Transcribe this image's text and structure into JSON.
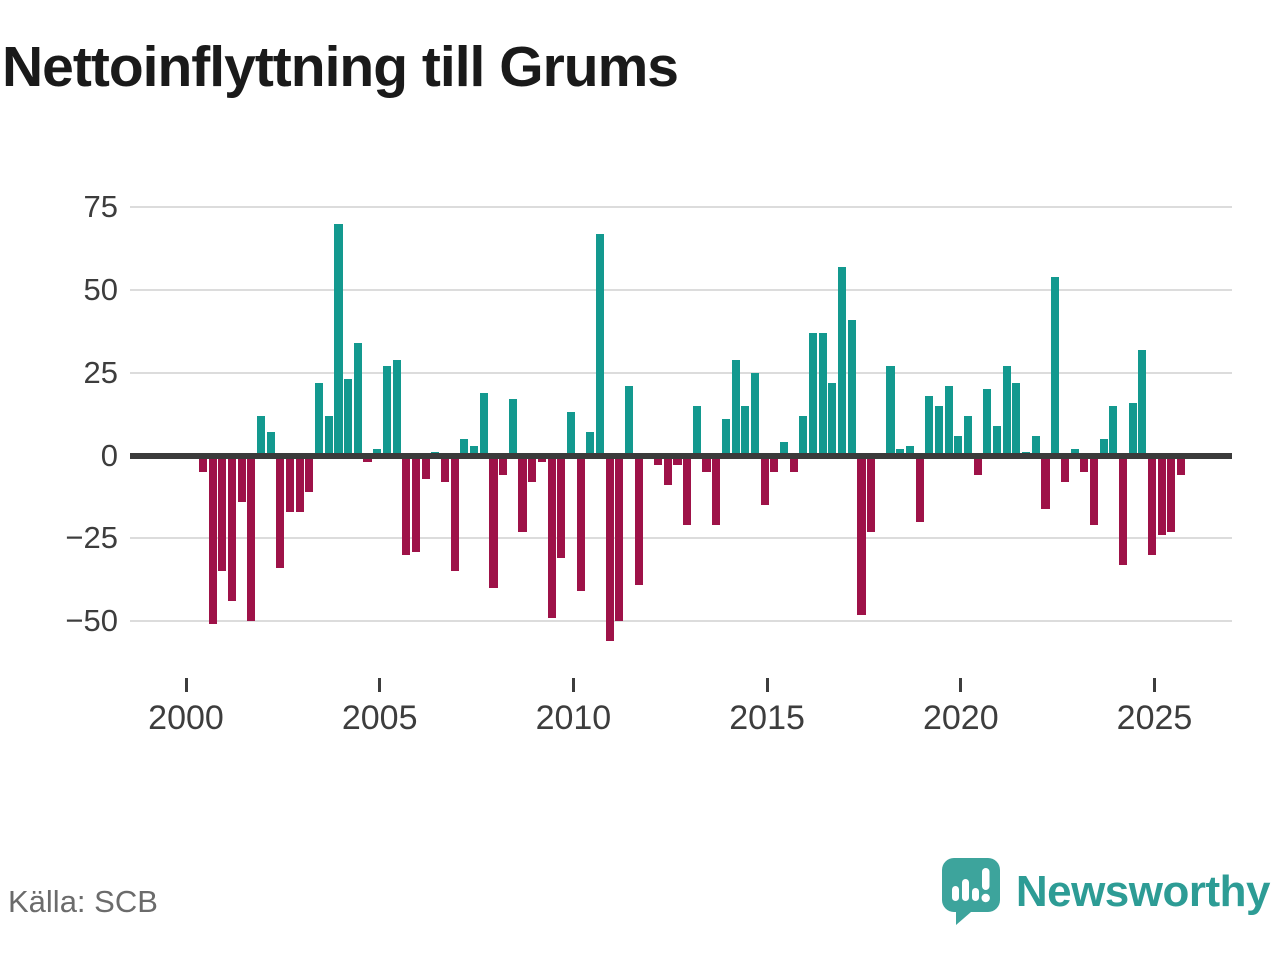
{
  "title": "Nettoinflyttning till Grums",
  "source": "Källa: SCB",
  "logo": {
    "text": "Newsworthy",
    "icon": "newsworthy-bar-chart-bubble"
  },
  "colors": {
    "positive": "#13998F",
    "negative": "#9E1248",
    "axis": "#3B3B3B",
    "grid": "#DCDCDC",
    "title": "#1A1A1A",
    "tick": "#3D3D3D",
    "source": "#6B6B6B",
    "brand": "#2D9C95"
  },
  "chart_data": {
    "type": "bar",
    "title": "Nettoinflyttning till Grums",
    "xlabel": "",
    "ylabel": "",
    "x_unit": "quarter",
    "start": "2000 Q2",
    "end": "2025 Q3",
    "grid": true,
    "ylim": [
      -62,
      80
    ],
    "y_ticks": [
      75,
      50,
      25,
      0,
      -25,
      -50
    ],
    "y_tick_labels": [
      "75",
      "50",
      "25",
      "0",
      "−25",
      "−50"
    ],
    "x_ticks": [
      2000,
      2005,
      2010,
      2015,
      2020,
      2025
    ],
    "x_tick_labels": [
      "2000",
      "2005",
      "2010",
      "2015",
      "2020",
      "2025"
    ],
    "quarters": [
      "2000 Q2",
      "2000 Q3",
      "2000 Q4",
      "2001 Q1",
      "2001 Q2",
      "2001 Q3",
      "2001 Q4",
      "2002 Q1",
      "2002 Q2",
      "2002 Q3",
      "2002 Q4",
      "2003 Q1",
      "2003 Q2",
      "2003 Q3",
      "2003 Q4",
      "2004 Q1",
      "2004 Q2",
      "2004 Q3",
      "2004 Q4",
      "2005 Q1",
      "2005 Q2",
      "2005 Q3",
      "2005 Q4",
      "2006 Q1",
      "2006 Q2",
      "2006 Q3",
      "2006 Q4",
      "2007 Q1",
      "2007 Q2",
      "2007 Q3",
      "2007 Q4",
      "2008 Q1",
      "2008 Q2",
      "2008 Q3",
      "2008 Q4",
      "2009 Q1",
      "2009 Q2",
      "2009 Q3",
      "2009 Q4",
      "2010 Q1",
      "2010 Q2",
      "2010 Q3",
      "2010 Q4",
      "2011 Q1",
      "2011 Q2",
      "2011 Q3",
      "2011 Q4",
      "2012 Q1",
      "2012 Q2",
      "2012 Q3",
      "2012 Q4",
      "2013 Q1",
      "2013 Q2",
      "2013 Q3",
      "2013 Q4",
      "2014 Q1",
      "2014 Q2",
      "2014 Q3",
      "2014 Q4",
      "2015 Q1",
      "2015 Q2",
      "2015 Q3",
      "2015 Q4",
      "2016 Q1",
      "2016 Q2",
      "2016 Q3",
      "2016 Q4",
      "2017 Q1",
      "2017 Q2",
      "2017 Q3",
      "2017 Q4",
      "2018 Q1",
      "2018 Q2",
      "2018 Q3",
      "2018 Q4",
      "2019 Q1",
      "2019 Q2",
      "2019 Q3",
      "2019 Q4",
      "2020 Q1",
      "2020 Q2",
      "2020 Q3",
      "2020 Q4",
      "2021 Q1",
      "2021 Q2",
      "2021 Q3",
      "2021 Q4",
      "2022 Q1",
      "2022 Q2",
      "2022 Q3",
      "2022 Q4",
      "2023 Q1",
      "2023 Q2",
      "2023 Q3",
      "2023 Q4",
      "2024 Q1",
      "2024 Q2",
      "2024 Q3",
      "2024 Q4",
      "2025 Q1",
      "2025 Q2",
      "2025 Q3"
    ],
    "values": [
      -5,
      -51,
      -35,
      -44,
      -14,
      -50,
      12,
      7,
      -34,
      -17,
      -17,
      -11,
      22,
      12,
      70,
      23,
      34,
      -2,
      2,
      27,
      29,
      -30,
      -29,
      -7,
      1,
      -8,
      -35,
      5,
      3,
      19,
      -40,
      -6,
      17,
      -23,
      -8,
      -2,
      -49,
      -31,
      13,
      -41,
      7,
      67,
      -56,
      -50,
      21,
      -39,
      0,
      -3,
      -9,
      -3,
      -21,
      15,
      -5,
      -21,
      11,
      29,
      15,
      25,
      -15,
      -5,
      4,
      -5,
      12,
      37,
      37,
      22,
      57,
      41,
      -48,
      -23,
      0,
      27,
      2,
      3,
      -20,
      18,
      15,
      21,
      6,
      12,
      -6,
      20,
      9,
      27,
      22,
      1,
      6,
      -16,
      54,
      -8,
      2,
      -5,
      -21,
      5,
      15,
      -33,
      16,
      32,
      -30,
      -24,
      -23,
      -6
    ]
  }
}
